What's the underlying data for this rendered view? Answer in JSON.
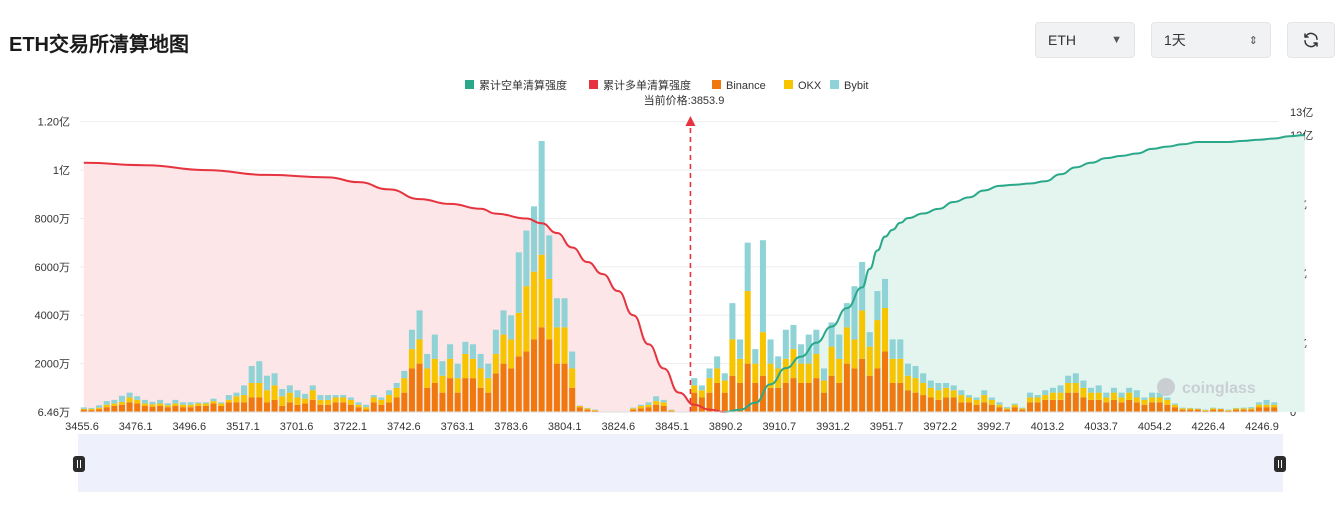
{
  "header": {
    "title": "ETH交易所清算地图"
  },
  "controls": {
    "symbol": "ETH",
    "period": "1天",
    "refresh_icon": "refresh-icon"
  },
  "colors": {
    "short_cum": "#2aa88a",
    "short_fill": "#e4f5ef",
    "long_cum": "#e5343f",
    "long_fill": "#fde6e7",
    "binance": "#f0790f",
    "okx": "#f7c500",
    "bybit": "#8fd3d6",
    "price_line": "#e5343f"
  },
  "chart_data": {
    "type": "bar",
    "legend": [
      {
        "name": "累计空单清算强度",
        "color": "#2aa88a"
      },
      {
        "name": "累计多单清算强度",
        "color": "#e5343f"
      },
      {
        "name": "Binance",
        "color": "#f0790f"
      },
      {
        "name": "OKX",
        "color": "#f7c500"
      },
      {
        "name": "Bybit",
        "color": "#8fd3d6"
      }
    ],
    "current_price_label": "当前价格:3853.9",
    "current_price": 3853.9,
    "left_axis": {
      "ticks": [
        {
          "v": 0,
          "label": "6.46万"
        },
        {
          "v": 20000000,
          "label": "2000万"
        },
        {
          "v": 40000000,
          "label": "4000万"
        },
        {
          "v": 60000000,
          "label": "6000万"
        },
        {
          "v": 80000000,
          "label": "8000万"
        },
        {
          "v": 100000000,
          "label": "1亿"
        },
        {
          "v": 120000000,
          "label": "1.20亿"
        }
      ],
      "max": 124000000
    },
    "right_axis": {
      "ticks": [
        {
          "v": 0,
          "label": "0"
        },
        {
          "v": 300000000,
          "label": "3亿"
        },
        {
          "v": 600000000,
          "label": "6亿"
        },
        {
          "v": 900000000,
          "label": "9亿"
        },
        {
          "v": 1200000000,
          "label": "12亿"
        },
        {
          "v": 1300000000,
          "label": "13亿"
        }
      ],
      "max": 1300000000
    },
    "x_tick_labels": [
      "3455.6",
      "3476.1",
      "3496.6",
      "3517.1",
      "3701.6",
      "3722.1",
      "3742.6",
      "3763.1",
      "3783.6",
      "3804.1",
      "3824.6",
      "3845.1",
      "3890.2",
      "3910.7",
      "3931.2",
      "3951.7",
      "3972.2",
      "3992.7",
      "4013.2",
      "4033.7",
      "4054.2",
      "4226.4",
      "4246.9"
    ],
    "current_price_index": 79,
    "bars": [
      [
        1,
        0.3,
        0.6
      ],
      [
        0.8,
        0.5,
        0.4
      ],
      [
        1.2,
        0.6,
        1
      ],
      [
        2,
        1,
        1.5
      ],
      [
        2.5,
        1,
        1.5
      ],
      [
        3,
        1.2,
        2.5
      ],
      [
        4,
        2,
        2
      ],
      [
        3.5,
        1.5,
        1.5
      ],
      [
        2.5,
        1,
        1.5
      ],
      [
        2.2,
        1,
        1
      ],
      [
        2.5,
        1,
        1.5
      ],
      [
        2,
        0.8,
        0.8
      ],
      [
        2.5,
        1,
        1.5
      ],
      [
        2,
        1,
        1
      ],
      [
        2,
        1,
        1
      ],
      [
        2.5,
        1,
        0.5
      ],
      [
        2.5,
        1,
        0.5
      ],
      [
        3.5,
        1,
        1
      ],
      [
        2.5,
        1,
        0.5
      ],
      [
        4,
        1,
        2
      ],
      [
        4,
        2.5,
        1.5
      ],
      [
        4,
        3,
        4
      ],
      [
        6,
        6,
        7
      ],
      [
        6,
        6,
        9
      ],
      [
        4,
        5,
        6
      ],
      [
        5,
        6,
        5
      ],
      [
        2.5,
        4,
        3
      ],
      [
        4,
        4,
        3
      ],
      [
        3,
        3,
        3
      ],
      [
        3.5,
        2,
        2
      ],
      [
        5,
        4,
        2
      ],
      [
        3,
        2,
        2
      ],
      [
        3,
        2,
        2
      ],
      [
        4,
        2,
        1
      ],
      [
        4,
        2,
        1
      ],
      [
        3,
        2,
        1
      ],
      [
        2,
        1,
        1
      ],
      [
        1,
        1,
        1
      ],
      [
        4,
        2,
        1
      ],
      [
        3,
        2,
        1
      ],
      [
        4,
        3,
        2
      ],
      [
        6,
        4,
        2
      ],
      [
        8,
        6,
        3
      ],
      [
        18,
        8,
        8
      ],
      [
        20,
        10,
        12
      ],
      [
        10,
        8,
        6
      ],
      [
        12,
        10,
        10
      ],
      [
        8,
        7,
        6
      ],
      [
        14,
        8,
        6
      ],
      [
        8,
        6,
        6
      ],
      [
        14,
        10,
        5
      ],
      [
        14,
        8,
        6
      ],
      [
        10,
        8,
        6
      ],
      [
        8,
        6,
        6
      ],
      [
        16,
        8,
        10
      ],
      [
        20,
        12,
        10
      ],
      [
        18,
        12,
        10
      ],
      [
        23,
        18,
        25
      ],
      [
        25,
        27,
        23
      ],
      [
        30,
        28,
        27
      ],
      [
        35,
        30,
        47
      ],
      [
        30,
        25,
        18
      ],
      [
        20,
        15,
        12
      ],
      [
        20,
        15,
        12
      ],
      [
        10,
        8,
        7
      ],
      [
        2,
        0.5,
        0.2
      ],
      [
        1,
        0.5,
        0.2
      ],
      [
        0.5,
        0.3,
        0.2
      ],
      [
        0,
        0,
        0
      ],
      [
        0,
        0,
        0
      ],
      [
        0,
        0,
        0
      ],
      [
        0,
        0,
        0
      ],
      [
        1,
        0.5,
        0.3
      ],
      [
        1.5,
        1,
        0.5
      ],
      [
        2,
        1,
        1
      ],
      [
        3,
        1.5,
        2
      ],
      [
        2.5,
        1.5,
        1
      ],
      [
        0.5,
        0.3,
        0.2
      ],
      [
        0,
        0,
        0
      ],
      [
        0,
        0,
        0
      ],
      [
        8,
        3,
        3
      ],
      [
        6,
        3,
        2
      ],
      [
        8,
        6,
        4
      ],
      [
        12,
        6,
        5
      ],
      [
        8,
        5,
        3
      ],
      [
        15,
        15,
        15
      ],
      [
        12,
        10,
        8
      ],
      [
        20,
        30,
        20
      ],
      [
        12,
        8,
        6
      ],
      [
        15,
        18,
        38
      ],
      [
        10,
        10,
        10
      ],
      [
        10,
        8,
        5
      ],
      [
        12,
        10,
        12
      ],
      [
        14,
        12,
        10
      ],
      [
        12,
        8,
        8
      ],
      [
        12,
        8,
        12
      ],
      [
        14,
        10,
        10
      ],
      [
        8,
        5,
        5
      ],
      [
        15,
        12,
        10
      ],
      [
        12,
        10,
        10
      ],
      [
        20,
        15,
        10
      ],
      [
        18,
        12,
        22
      ],
      [
        22,
        20,
        20
      ],
      [
        15,
        12,
        6
      ],
      [
        18,
        20,
        12
      ],
      [
        25,
        18,
        12
      ],
      [
        12,
        10,
        8
      ],
      [
        12,
        10,
        8
      ],
      [
        9,
        6,
        5
      ],
      [
        8,
        6,
        5
      ],
      [
        7,
        5,
        4
      ],
      [
        6,
        4,
        3
      ],
      [
        5,
        4,
        3
      ],
      [
        6,
        4,
        2
      ],
      [
        6,
        3,
        2
      ],
      [
        4,
        3,
        2
      ],
      [
        4,
        2,
        1
      ],
      [
        3,
        2,
        1
      ],
      [
        4,
        3,
        2
      ],
      [
        3,
        2,
        1
      ],
      [
        2,
        1,
        1
      ],
      [
        1,
        0.5,
        0.5
      ],
      [
        2,
        1,
        0.5
      ],
      [
        1,
        0.5,
        0.3
      ],
      [
        4,
        2,
        2
      ],
      [
        4,
        2,
        1
      ],
      [
        5,
        2,
        2
      ],
      [
        5,
        3,
        2
      ],
      [
        5,
        3,
        3
      ],
      [
        8,
        4,
        3
      ],
      [
        8,
        4,
        4
      ],
      [
        6,
        4,
        3
      ],
      [
        5,
        3,
        2
      ],
      [
        5,
        3,
        3
      ],
      [
        4,
        2,
        2
      ],
      [
        5,
        3,
        2
      ],
      [
        4,
        2,
        2
      ],
      [
        5,
        3,
        2
      ],
      [
        4,
        2,
        3
      ],
      [
        3,
        2,
        1
      ],
      [
        4,
        2,
        2
      ],
      [
        4,
        2,
        2
      ],
      [
        3,
        2,
        1
      ],
      [
        2,
        1,
        0.5
      ],
      [
        1,
        0.5,
        0.3
      ],
      [
        1,
        0.5,
        0.2
      ],
      [
        1,
        0.3,
        0.2
      ],
      [
        0.5,
        0.3,
        0.2
      ],
      [
        1,
        0.5,
        0.3
      ],
      [
        1,
        0.3,
        0.2
      ],
      [
        0.5,
        0.3,
        0.2
      ],
      [
        1,
        0.5,
        0.2
      ],
      [
        1,
        0.5,
        0.3
      ],
      [
        1,
        0.5,
        0.5
      ],
      [
        2,
        1,
        1
      ],
      [
        2,
        1,
        2
      ],
      [
        2,
        1,
        1
      ]
    ],
    "long_cum": [
      [
        0,
        103
      ],
      [
        8,
        102
      ],
      [
        16,
        100
      ],
      [
        24,
        98
      ],
      [
        32,
        97
      ],
      [
        36,
        95
      ],
      [
        40,
        92
      ],
      [
        44,
        88
      ],
      [
        48,
        86
      ],
      [
        52,
        84
      ],
      [
        54,
        82
      ],
      [
        58,
        80
      ],
      [
        60,
        78
      ],
      [
        62,
        74
      ],
      [
        64,
        68
      ],
      [
        66,
        62
      ],
      [
        68,
        57
      ],
      [
        70,
        50
      ],
      [
        72,
        40
      ],
      [
        74,
        28
      ],
      [
        76,
        18
      ],
      [
        78,
        8
      ],
      [
        80,
        3
      ],
      [
        82,
        1
      ],
      [
        84,
        0
      ]
    ],
    "short_cum": [
      [
        84,
        0
      ],
      [
        86,
        10
      ],
      [
        88,
        40
      ],
      [
        90,
        120
      ],
      [
        92,
        190
      ],
      [
        94,
        240
      ],
      [
        96,
        300
      ],
      [
        98,
        370
      ],
      [
        100,
        450
      ],
      [
        102,
        540
      ],
      [
        103,
        620
      ],
      [
        104,
        700
      ],
      [
        105,
        760
      ],
      [
        106,
        790
      ],
      [
        107,
        820
      ],
      [
        108,
        840
      ],
      [
        110,
        860
      ],
      [
        112,
        880
      ],
      [
        114,
        910
      ],
      [
        116,
        930
      ],
      [
        118,
        960
      ],
      [
        120,
        980
      ],
      [
        122,
        985
      ],
      [
        124,
        990
      ],
      [
        126,
        1000
      ],
      [
        128,
        1030
      ],
      [
        130,
        1060
      ],
      [
        132,
        1080
      ],
      [
        134,
        1100
      ],
      [
        136,
        1110
      ],
      [
        138,
        1120
      ],
      [
        140,
        1140
      ],
      [
        142,
        1150
      ],
      [
        144,
        1160
      ],
      [
        146,
        1170
      ],
      [
        148,
        1170
      ],
      [
        150,
        1170
      ],
      [
        152,
        1175
      ],
      [
        154,
        1180
      ],
      [
        156,
        1185
      ],
      [
        158,
        1195
      ],
      [
        160,
        1200
      ]
    ]
  },
  "watermark": "coinglass"
}
